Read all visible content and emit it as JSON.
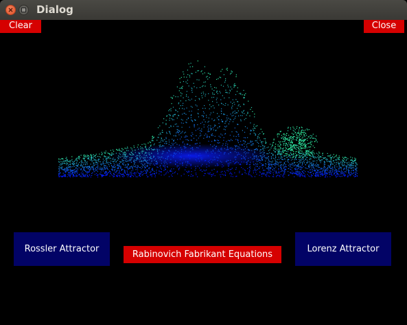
{
  "window": {
    "title": "Dialog"
  },
  "toolbar": {
    "clear_label": "Clear",
    "close_label": "Close"
  },
  "buttons": {
    "rossler_label": "Rossler Attractor",
    "rabinovich_label": "Rabinovich Fabrikant Equations",
    "lorenz_label": "Lorenz Attractor"
  },
  "colors": {
    "background": "#000000",
    "red_button": "#d60000",
    "blue_button": "#020366",
    "attractor_low": "#0010ff",
    "attractor_high": "#33ff99"
  }
}
